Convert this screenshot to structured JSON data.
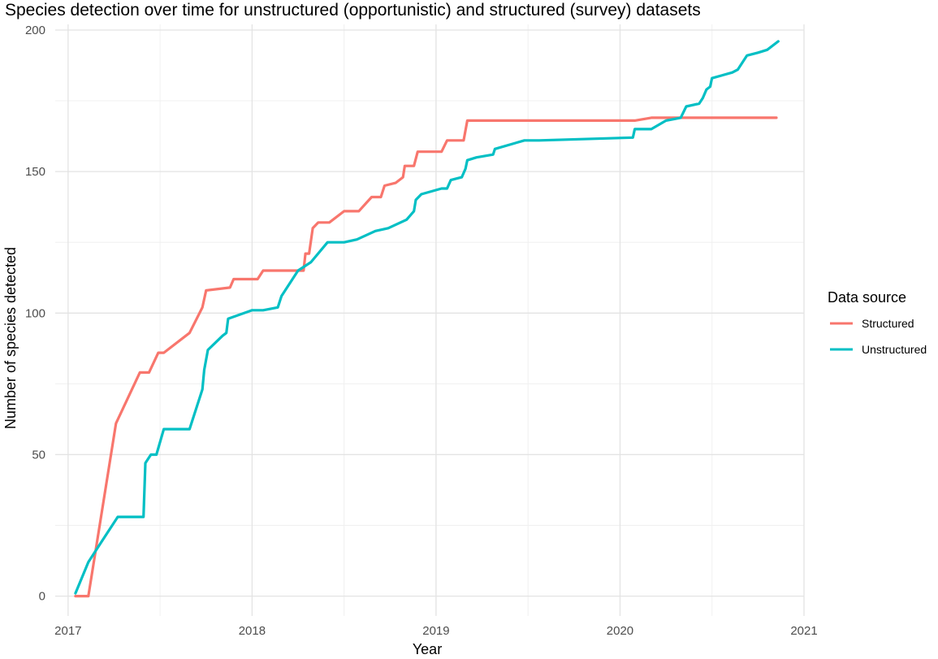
{
  "chart_data": {
    "type": "line",
    "title": "Species detection over time for unstructured (opportunistic) and structured (survey) datasets",
    "xlabel": "Year",
    "ylabel": "Number of species detected",
    "xlim": [
      2016.93,
      2021.0
    ],
    "ylim": [
      -7,
      202
    ],
    "x_ticks": [
      2017,
      2018,
      2019,
      2020,
      2021
    ],
    "y_ticks": [
      0,
      50,
      100,
      150,
      200
    ],
    "grid": true,
    "legend": {
      "title": "Data source",
      "placement": "right"
    },
    "series": [
      {
        "name": "Structured",
        "color": "#F8766D",
        "points": [
          [
            2017.04,
            0
          ],
          [
            2017.11,
            0
          ],
          [
            2017.26,
            61
          ],
          [
            2017.39,
            79
          ],
          [
            2017.44,
            79
          ],
          [
            2017.49,
            86
          ],
          [
            2017.52,
            86
          ],
          [
            2017.66,
            93
          ],
          [
            2017.73,
            102
          ],
          [
            2017.75,
            108
          ],
          [
            2017.88,
            109
          ],
          [
            2017.9,
            112
          ],
          [
            2018.03,
            112
          ],
          [
            2018.06,
            115
          ],
          [
            2018.28,
            115
          ],
          [
            2018.29,
            121
          ],
          [
            2018.31,
            121
          ],
          [
            2018.33,
            130
          ],
          [
            2018.36,
            132
          ],
          [
            2018.42,
            132
          ],
          [
            2018.5,
            136
          ],
          [
            2018.58,
            136
          ],
          [
            2018.65,
            141
          ],
          [
            2018.7,
            141
          ],
          [
            2018.72,
            145
          ],
          [
            2018.78,
            146
          ],
          [
            2018.82,
            148
          ],
          [
            2018.83,
            152
          ],
          [
            2018.88,
            152
          ],
          [
            2018.9,
            157
          ],
          [
            2019.03,
            157
          ],
          [
            2019.06,
            161
          ],
          [
            2019.15,
            161
          ],
          [
            2019.17,
            168
          ],
          [
            2020.08,
            168
          ],
          [
            2020.17,
            169
          ],
          [
            2020.85,
            169
          ]
        ]
      },
      {
        "name": "Unstructured",
        "color": "#00BFC4",
        "points": [
          [
            2017.04,
            1
          ],
          [
            2017.11,
            12
          ],
          [
            2017.18,
            19
          ],
          [
            2017.27,
            28
          ],
          [
            2017.41,
            28
          ],
          [
            2017.42,
            47
          ],
          [
            2017.45,
            50
          ],
          [
            2017.48,
            50
          ],
          [
            2017.52,
            59
          ],
          [
            2017.66,
            59
          ],
          [
            2017.73,
            73
          ],
          [
            2017.74,
            80
          ],
          [
            2017.76,
            87
          ],
          [
            2017.84,
            92
          ],
          [
            2017.86,
            93
          ],
          [
            2017.87,
            98
          ],
          [
            2018.0,
            101
          ],
          [
            2018.06,
            101
          ],
          [
            2018.14,
            102
          ],
          [
            2018.16,
            106
          ],
          [
            2018.25,
            115
          ],
          [
            2018.32,
            118
          ],
          [
            2018.41,
            125
          ],
          [
            2018.5,
            125
          ],
          [
            2018.57,
            126
          ],
          [
            2018.67,
            129
          ],
          [
            2018.74,
            130
          ],
          [
            2018.84,
            133
          ],
          [
            2018.88,
            136
          ],
          [
            2018.89,
            140
          ],
          [
            2018.92,
            142
          ],
          [
            2019.03,
            144
          ],
          [
            2019.06,
            144
          ],
          [
            2019.08,
            147
          ],
          [
            2019.14,
            148
          ],
          [
            2019.16,
            151
          ],
          [
            2019.17,
            154
          ],
          [
            2019.22,
            155
          ],
          [
            2019.31,
            156
          ],
          [
            2019.32,
            158
          ],
          [
            2019.48,
            161
          ],
          [
            2019.56,
            161
          ],
          [
            2020.07,
            162
          ],
          [
            2020.08,
            165
          ],
          [
            2020.17,
            165
          ],
          [
            2020.25,
            168
          ],
          [
            2020.33,
            169
          ],
          [
            2020.36,
            173
          ],
          [
            2020.43,
            174
          ],
          [
            2020.45,
            176
          ],
          [
            2020.47,
            179
          ],
          [
            2020.49,
            180
          ],
          [
            2020.5,
            183
          ],
          [
            2020.61,
            185
          ],
          [
            2020.64,
            186
          ],
          [
            2020.69,
            191
          ],
          [
            2020.75,
            192
          ],
          [
            2020.8,
            193
          ],
          [
            2020.86,
            196
          ]
        ]
      }
    ]
  }
}
